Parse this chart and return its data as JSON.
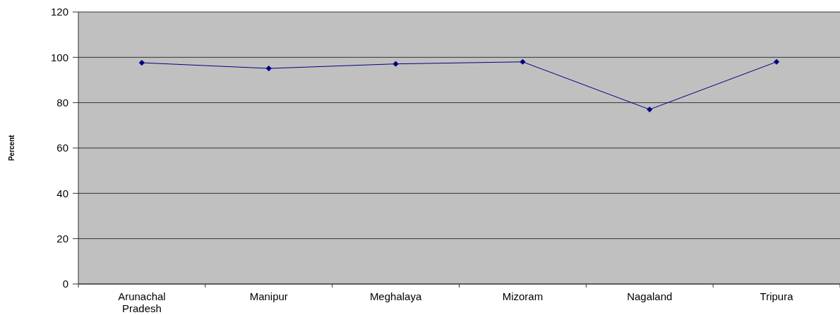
{
  "chart_data": {
    "type": "line",
    "ylabel": "Percent",
    "categories": [
      "Arunachal Pradesh",
      "Manipur",
      "Meghalaya",
      "Mizoram",
      "Nagaland",
      "Tripura"
    ],
    "series": [
      {
        "color": "#000080",
        "values": [
          97.6,
          95.1,
          97.1,
          98.0,
          77.0,
          98.0
        ]
      }
    ],
    "ylim": [
      0,
      120
    ],
    "yticks": [
      0,
      20,
      40,
      60,
      80,
      100,
      120
    ],
    "grid": "y",
    "marker": "diamond",
    "line_style": "solid"
  }
}
